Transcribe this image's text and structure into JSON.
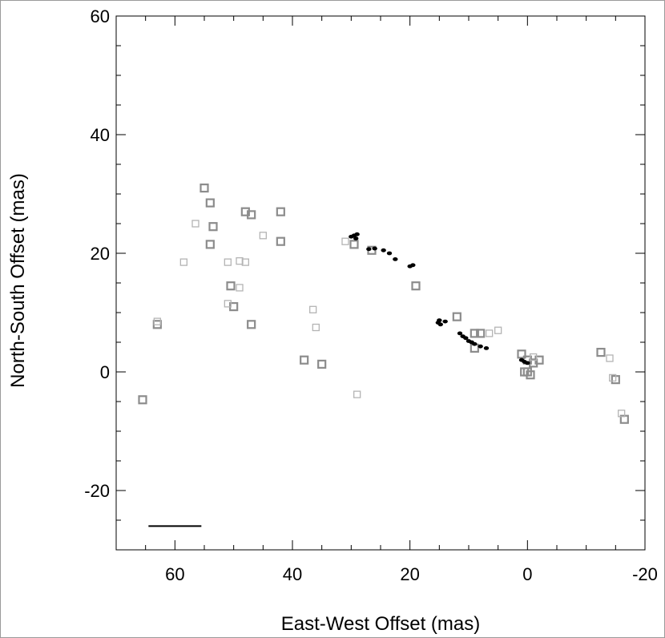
{
  "chart_data": {
    "type": "scatter",
    "xlabel": "East-West Offset (mas)",
    "ylabel": "North-South Offset (mas)",
    "xlim": [
      70,
      -20
    ],
    "ylim": [
      -30,
      60
    ],
    "xticks": [
      60,
      40,
      20,
      0,
      -20
    ],
    "yticks": [
      60,
      40,
      20,
      0,
      -20
    ],
    "xtick_labels": [
      "60",
      "40",
      "20",
      "0",
      "-20"
    ],
    "ytick_labels": [
      "60",
      "40",
      "20",
      "0",
      "-20"
    ],
    "grid": false,
    "legend": "none",
    "series": [
      {
        "marker": "open-square-bold",
        "color": "#8c8c8c",
        "points": [
          [
            55,
            31
          ],
          [
            54,
            28.5
          ],
          [
            53.5,
            24.5
          ],
          [
            54,
            21.5
          ],
          [
            48,
            27
          ],
          [
            47,
            26.5
          ],
          [
            42,
            27
          ],
          [
            42,
            22
          ],
          [
            50.5,
            14.5
          ],
          [
            50,
            11
          ],
          [
            47,
            8
          ],
          [
            38,
            2
          ],
          [
            35,
            1.3
          ],
          [
            63,
            8
          ],
          [
            65.5,
            -4.7
          ],
          [
            29.5,
            21.5
          ],
          [
            26.5,
            20.5
          ],
          [
            19,
            14.5
          ],
          [
            12,
            9.3
          ],
          [
            9,
            6.5
          ],
          [
            8,
            6.5
          ],
          [
            9,
            4
          ],
          [
            1,
            3
          ],
          [
            0,
            2
          ],
          [
            -1,
            1.5
          ],
          [
            -2,
            2
          ],
          [
            0.5,
            0
          ],
          [
            0,
            0
          ],
          [
            -0.5,
            -0.5
          ],
          [
            -12.5,
            3.3
          ],
          [
            -15,
            -1.3
          ],
          [
            -16.5,
            -8
          ]
        ]
      },
      {
        "marker": "open-square-light",
        "color": "#b4b4b4",
        "points": [
          [
            58.5,
            18.5
          ],
          [
            56.5,
            25
          ],
          [
            51,
            18.5
          ],
          [
            49,
            18.7
          ],
          [
            48,
            18.5
          ],
          [
            49,
            14.2
          ],
          [
            51,
            11.5
          ],
          [
            45,
            23
          ],
          [
            36.5,
            10.5
          ],
          [
            36,
            7.5
          ],
          [
            31,
            22
          ],
          [
            29,
            -3.8
          ],
          [
            63,
            8.5
          ],
          [
            5,
            7
          ],
          [
            6.5,
            6.5
          ],
          [
            -1,
            2.5
          ],
          [
            -14,
            2.3
          ],
          [
            -14.5,
            -1
          ],
          [
            -16,
            -7
          ]
        ]
      },
      {
        "marker": "filled-dot",
        "color": "#000000",
        "points": [
          [
            29.5,
            23
          ],
          [
            29,
            23.2
          ],
          [
            30,
            22.8
          ],
          [
            29.2,
            22.5
          ],
          [
            27,
            20.7
          ],
          [
            26,
            20.8
          ],
          [
            24.5,
            20.5
          ],
          [
            23.5,
            20
          ],
          [
            22.5,
            19
          ],
          [
            20,
            17.8
          ],
          [
            19.5,
            18
          ],
          [
            15,
            8.7
          ],
          [
            15.2,
            8.3
          ],
          [
            14.8,
            8
          ],
          [
            14,
            8.5
          ],
          [
            11.5,
            6.5
          ],
          [
            11,
            6
          ],
          [
            10.5,
            5.7
          ],
          [
            10,
            5.2
          ],
          [
            9.5,
            5
          ],
          [
            9,
            4.7
          ],
          [
            8,
            4.3
          ],
          [
            7,
            4
          ],
          [
            1,
            2
          ],
          [
            0.5,
            1.7
          ],
          [
            0,
            1.5
          ]
        ]
      }
    ],
    "scale_bar": {
      "x_from": 64.5,
      "x_to": 55.5,
      "y": -26
    }
  }
}
